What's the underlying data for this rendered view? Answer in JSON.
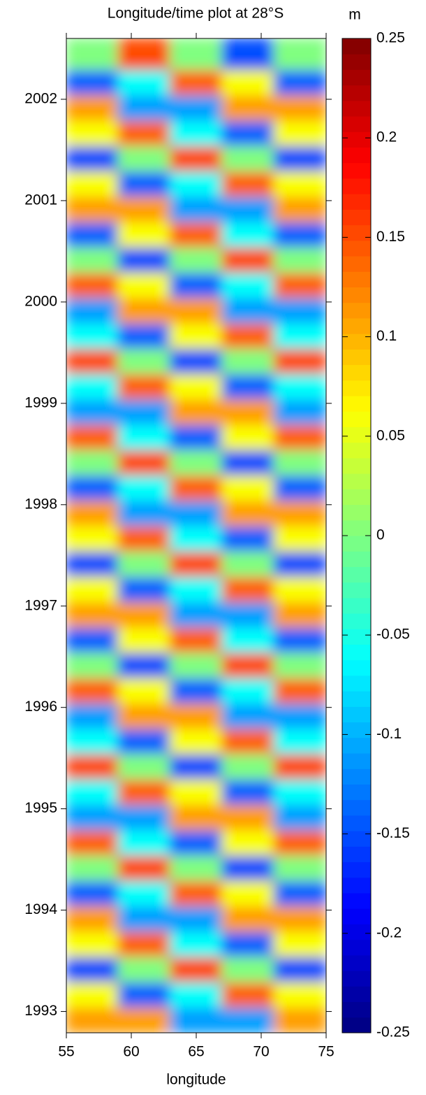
{
  "chart_data": {
    "type": "heatmap",
    "title": "Longitude/time plot at 28°S",
    "xlabel": "longitude",
    "colorbar_label": "m",
    "colormap": "jet",
    "x": [
      57,
      61,
      65,
      69,
      73
    ],
    "y": [
      1992.92,
      1993.17,
      1993.42,
      1993.67,
      1993.92,
      1994.17,
      1994.42,
      1994.67,
      1994.92,
      1995.17,
      1995.42,
      1995.67,
      1995.92,
      1996.17,
      1996.42,
      1996.67,
      1996.92,
      1997.17,
      1997.42,
      1997.67,
      1997.92,
      1998.17,
      1998.42,
      1998.67,
      1998.92,
      1999.17,
      1999.42,
      1999.67,
      1999.92,
      2000.17,
      2000.42,
      2000.67,
      2000.92,
      2001.17,
      2001.42,
      2001.67,
      2001.92,
      2002.17,
      2002.42
    ],
    "z": [
      [
        0.11,
        0.11,
        -0.11,
        -0.11,
        0.11
      ],
      [
        0.06,
        -0.14,
        -0.06,
        0.14,
        0.06
      ],
      [
        -0.15,
        0,
        0.15,
        0,
        -0.15
      ],
      [
        0.06,
        0.14,
        -0.06,
        -0.14,
        0.06
      ],
      [
        0.11,
        -0.11,
        -0.11,
        0.11,
        0.11
      ],
      [
        -0.14,
        -0.06,
        0.14,
        0.06,
        -0.14
      ],
      [
        0,
        0.15,
        0,
        -0.15,
        0
      ],
      [
        0.14,
        -0.06,
        -0.14,
        0.06,
        0.14
      ],
      [
        -0.11,
        -0.11,
        0.11,
        0.11,
        -0.11
      ],
      [
        -0.06,
        0.14,
        0.06,
        -0.14,
        -0.06
      ],
      [
        0.15,
        0,
        -0.15,
        0,
        0.15
      ],
      [
        -0.06,
        -0.14,
        0.06,
        0.14,
        -0.06
      ],
      [
        -0.11,
        0.11,
        0.11,
        -0.11,
        -0.11
      ],
      [
        0.14,
        0.06,
        -0.14,
        -0.06,
        0.14
      ],
      [
        0,
        -0.15,
        0,
        0.15,
        0
      ],
      [
        -0.14,
        0.06,
        0.14,
        -0.06,
        -0.14
      ],
      [
        0.11,
        0.11,
        -0.11,
        -0.11,
        0.11
      ],
      [
        0.06,
        -0.14,
        -0.06,
        0.14,
        0.06
      ],
      [
        -0.15,
        0,
        0.15,
        0,
        -0.15
      ],
      [
        0.06,
        0.14,
        -0.06,
        -0.14,
        0.06
      ],
      [
        0.11,
        -0.11,
        -0.11,
        0.11,
        0.11
      ],
      [
        -0.14,
        -0.06,
        0.14,
        0.06,
        -0.14
      ],
      [
        0,
        0.15,
        0,
        -0.15,
        0
      ],
      [
        0.14,
        -0.06,
        -0.14,
        0.06,
        0.14
      ],
      [
        -0.11,
        -0.11,
        0.11,
        0.11,
        -0.11
      ],
      [
        -0.06,
        0.14,
        0.06,
        -0.14,
        -0.06
      ],
      [
        0.15,
        0,
        -0.15,
        0,
        0.15
      ],
      [
        -0.06,
        -0.14,
        0.06,
        0.14,
        -0.06
      ],
      [
        -0.11,
        0.11,
        0.11,
        -0.11,
        -0.11
      ],
      [
        0.14,
        0.06,
        -0.14,
        -0.06,
        0.14
      ],
      [
        0,
        -0.15,
        0,
        0.15,
        0
      ],
      [
        -0.14,
        0.06,
        0.14,
        -0.06,
        -0.14
      ],
      [
        0.11,
        0.11,
        -0.11,
        -0.11,
        0.11
      ],
      [
        0.06,
        -0.14,
        -0.06,
        0.14,
        0.06
      ],
      [
        -0.15,
        0,
        0.15,
        0,
        -0.15
      ],
      [
        0.06,
        0.14,
        -0.06,
        -0.14,
        0.06
      ],
      [
        0.11,
        -0.11,
        -0.11,
        0.11,
        0.11
      ],
      [
        -0.14,
        -0.06,
        0.14,
        0.06,
        -0.14
      ],
      [
        0,
        0.15,
        0,
        -0.15,
        0
      ]
    ],
    "xlim": [
      55,
      75
    ],
    "xticks": [
      55,
      60,
      65,
      70,
      75
    ],
    "ylim": [
      1992.79,
      2002.6
    ],
    "yticks": [
      1993,
      1994,
      1995,
      1996,
      1997,
      1998,
      1999,
      2000,
      2001,
      2002
    ],
    "clim": [
      -0.25,
      0.25
    ],
    "cticks": [
      -0.25,
      -0.2,
      -0.15,
      -0.1,
      -0.05,
      0,
      0.05,
      0.1,
      0.15,
      0.2,
      0.25
    ]
  }
}
